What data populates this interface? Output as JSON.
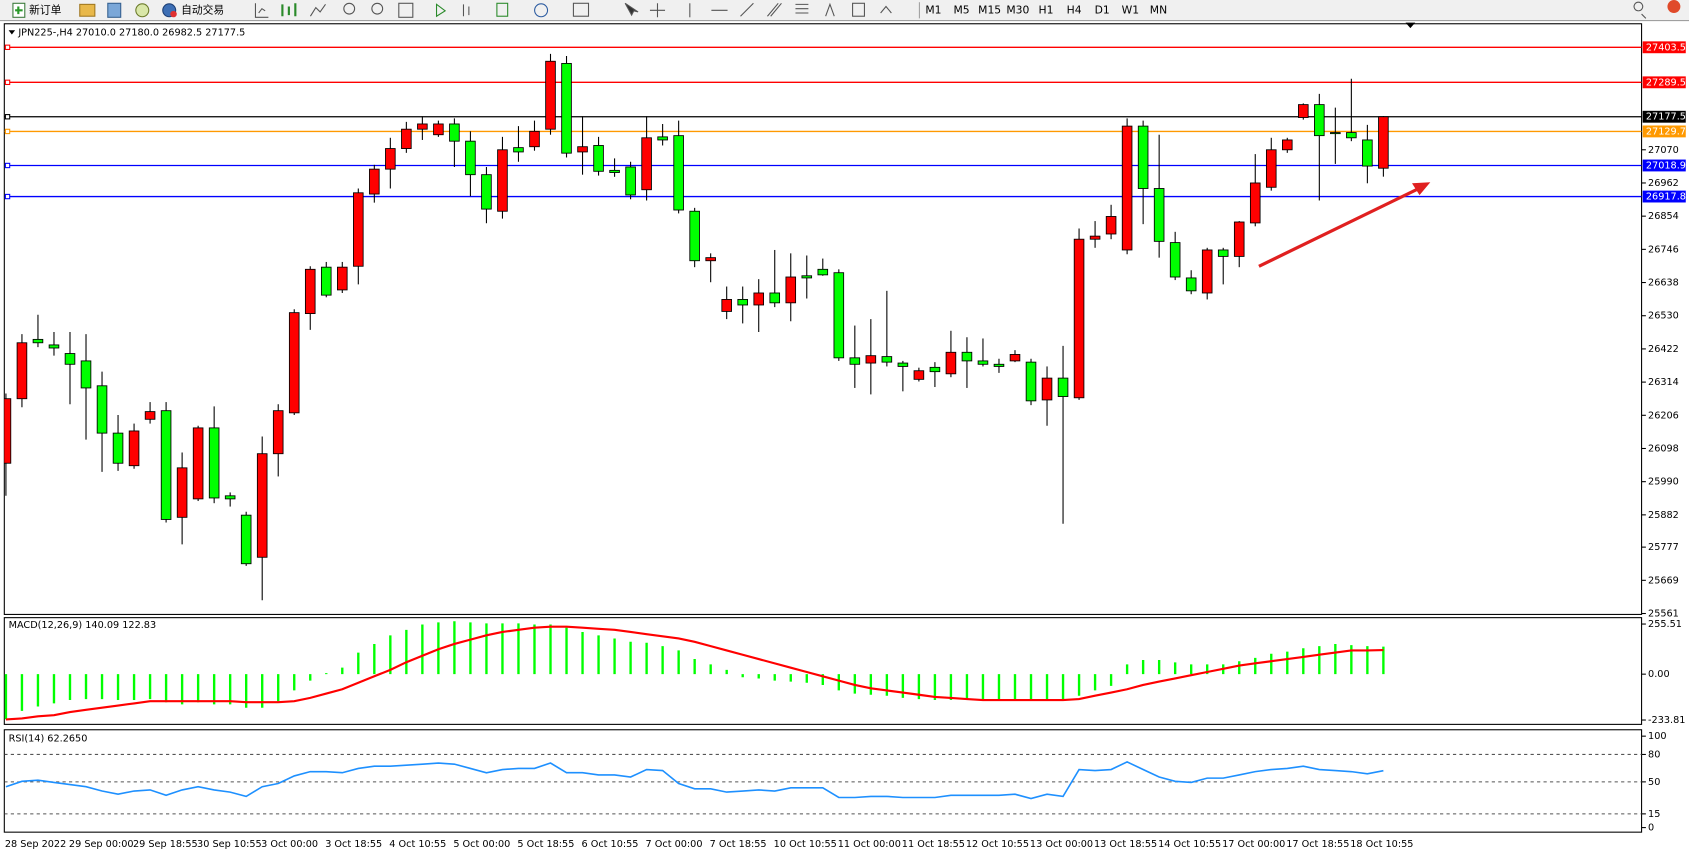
{
  "toolbar": {
    "new_order": "新订单",
    "auto_trading": "自动交易",
    "timeframes": [
      "M1",
      "M5",
      "M15",
      "M30",
      "H1",
      "H4",
      "D1",
      "W1",
      "MN"
    ]
  },
  "chart_data": [
    {
      "type": "candlestick",
      "title": "JPN225-,H4 27010.0 27180.0 26982.5 27177.5",
      "categories": [
        "28 Sep 2022",
        null,
        null,
        null,
        "29 Sep 00:00",
        null,
        null,
        null,
        "29 Sep 18:55",
        null,
        null,
        null,
        "30 Sep 10:55",
        null,
        null,
        null,
        "3 Oct 00:00",
        null,
        null,
        null,
        "3 Oct 18:55",
        null,
        null,
        null,
        "4 Oct 10:55",
        null,
        null,
        null,
        "5 Oct 00:00",
        null,
        null,
        null,
        "5 Oct 18:55",
        null,
        null,
        null,
        "6 Oct 10:55",
        null,
        null,
        null,
        "7 Oct 00:00",
        null,
        null,
        null,
        "7 Oct 18:55",
        null,
        null,
        null,
        "10 Oct 10:55",
        null,
        null,
        null,
        "11 Oct 00:00",
        null,
        null,
        null,
        "11 Oct 18:55",
        null,
        null,
        null,
        "12 Oct 10:55",
        null,
        null,
        null,
        "13 Oct 00:00",
        null,
        null,
        null,
        "13 Oct 18:55",
        null,
        null,
        null,
        "14 Oct 10:55",
        null,
        null,
        null,
        "17 Oct 00:00",
        null,
        null,
        null,
        "17 Oct 18:55",
        null,
        null,
        null,
        "18 Oct 10:55",
        null,
        null
      ],
      "open": [
        26050,
        26260,
        26453,
        26435,
        26407,
        26383,
        26302,
        26148,
        26042,
        26193,
        26221,
        25874,
        25934,
        26165,
        25944,
        25881,
        25744,
        26081,
        26214,
        26537,
        26688,
        26614,
        26691,
        26926,
        27007,
        27074,
        27137,
        27119,
        27154,
        27098,
        26989,
        26870,
        27077,
        27080,
        27137,
        27351,
        27063,
        27084,
        27003,
        27014,
        26940,
        27112,
        27116,
        26870,
        26709,
        26544,
        26583,
        26565,
        26604,
        26572,
        26660,
        26681,
        26670,
        26393,
        26376,
        26397,
        26376,
        26323,
        26362,
        26341,
        26411,
        26383,
        26372,
        26383,
        26379,
        26256,
        26327,
        26263,
        26779,
        26796,
        26744,
        27147,
        26944,
        26768,
        26653,
        26604,
        26744,
        26723,
        26832,
        26948,
        27070,
        27175,
        27217,
        27126,
        27126,
        27102,
        27010
      ],
      "high": [
        26277,
        26470,
        26533,
        26477,
        26477,
        26470,
        26348,
        26207,
        26179,
        26249,
        26249,
        26085,
        26172,
        26235,
        25955,
        25892,
        26137,
        26242,
        26551,
        26691,
        26705,
        26705,
        26944,
        27021,
        27109,
        27161,
        27179,
        27165,
        27172,
        27130,
        27014,
        27112,
        27147,
        27165,
        27382,
        27375,
        27179,
        27112,
        27042,
        27031,
        27179,
        27154,
        27165,
        26881,
        26733,
        26625,
        26625,
        26649,
        26744,
        26733,
        26726,
        26716,
        26681,
        26498,
        26519,
        26611,
        26383,
        26361,
        26379,
        26481,
        26460,
        26456,
        26390,
        26418,
        26390,
        26365,
        26432,
        26814,
        26838,
        26891,
        27172,
        27165,
        27119,
        26803,
        26678,
        26751,
        26751,
        26838,
        27056,
        27109,
        27109,
        27221,
        27252,
        27207,
        27301,
        27151,
        27180
      ],
      "low": [
        25944,
        26232,
        26428,
        26400,
        26242,
        26127,
        26022,
        26025,
        26032,
        26179,
        25857,
        25786,
        25927,
        25920,
        25909,
        25716,
        25604,
        26007,
        26207,
        26484,
        26590,
        26604,
        26632,
        26898,
        26944,
        27060,
        27102,
        27112,
        27014,
        26919,
        26831,
        26846,
        27031,
        27067,
        27119,
        27045,
        26989,
        26986,
        26982,
        26909,
        26905,
        27084,
        26863,
        26688,
        26639,
        26519,
        26505,
        26477,
        26558,
        26512,
        26586,
        26660,
        26383,
        26295,
        26274,
        26365,
        26284,
        26316,
        26298,
        26330,
        26295,
        26365,
        26344,
        26379,
        26239,
        26172,
        25853,
        26256,
        26751,
        26779,
        26730,
        26828,
        26719,
        26646,
        26600,
        26583,
        26632,
        26688,
        26821,
        26937,
        27060,
        27168,
        26905,
        27024,
        27098,
        26961,
        26982.5
      ],
      "close": [
        26260,
        26442,
        26442,
        26425,
        26372,
        26295,
        26148,
        26050,
        26155,
        26218,
        25867,
        26035,
        26165,
        25937,
        25934,
        25723,
        26081,
        26221,
        26540,
        26681,
        26597,
        26688,
        26930,
        27007,
        27074,
        27137,
        27154,
        27154,
        27098,
        26989,
        26877,
        27070,
        27063,
        27130,
        27358,
        27059,
        27080,
        27000,
        26996,
        26923,
        27109,
        27102,
        26874,
        26709,
        26719,
        26583,
        26565,
        26604,
        26572,
        26656,
        26653,
        26663,
        26393,
        26372,
        26400,
        26379,
        26365,
        26351,
        26348,
        26411,
        26383,
        26372,
        26365,
        26404,
        26253,
        26327,
        26267,
        26779,
        26789,
        26853,
        27147,
        26944,
        26772,
        26656,
        26611,
        26744,
        26723,
        26835,
        26962,
        27070,
        27102,
        27217,
        27116,
        27123,
        27109,
        27017,
        27177.5
      ],
      "up_color": "#ff0000",
      "down_color": "#00ff00",
      "ylim": [
        25558,
        27452
      ],
      "yticks": [
        27070,
        26962,
        26854,
        26746,
        26638,
        26530,
        26422,
        26314,
        26206,
        26098,
        25990,
        25882,
        25777,
        25669,
        25561
      ],
      "levels": [
        {
          "value": 27403.5,
          "color": "#ff0000"
        },
        {
          "value": 27289.5,
          "color": "#ff0000"
        },
        {
          "value": 27177.5,
          "color": "#000000"
        },
        {
          "value": 27129.7,
          "color": "#ff9900"
        },
        {
          "value": 27018.9,
          "color": "#0000ff"
        },
        {
          "value": 26917.8,
          "color": "#0000ff"
        }
      ]
    },
    {
      "type": "macd",
      "title": "MACD(12,26,9) 140.09 122.83",
      "series": [
        {
          "style": "histogram",
          "color": "#00ff00",
          "values": [
            -230,
            -187,
            -165,
            -149,
            -132,
            -127,
            -127,
            -132,
            -132,
            -127,
            -143,
            -154,
            -143,
            -154,
            -154,
            -171,
            -171,
            -138,
            -83,
            -33,
            5,
            33,
            110,
            154,
            198,
            226,
            253,
            264,
            270,
            264,
            259,
            259,
            259,
            253,
            253,
            237,
            215,
            198,
            182,
            165,
            160,
            143,
            121,
            77,
            50,
            22,
            -16,
            -22,
            -33,
            -38,
            -44,
            -55,
            -83,
            -99,
            -105,
            -110,
            -121,
            -127,
            -132,
            -132,
            -132,
            -132,
            -132,
            -132,
            -132,
            -132,
            -132,
            -110,
            -83,
            -60,
            50,
            72,
            72,
            60,
            50,
            50,
            50,
            66,
            83,
            104,
            115,
            132,
            143,
            154,
            148,
            143,
            140.09
          ]
        },
        {
          "style": "line",
          "color": "#ff0000",
          "values": [
            -231,
            -226,
            -215,
            -209,
            -193,
            -182,
            -171,
            -160,
            -149,
            -138,
            -138,
            -138,
            -138,
            -138,
            -138,
            -143,
            -143,
            -143,
            -138,
            -121,
            -99,
            -77,
            -44,
            -11,
            22,
            61,
            94,
            127,
            154,
            176,
            198,
            215,
            226,
            237,
            242,
            242,
            237,
            231,
            226,
            215,
            204,
            193,
            182,
            165,
            143,
            121,
            99,
            77,
            55,
            33,
            11,
            -11,
            -33,
            -55,
            -72,
            -83,
            -94,
            -105,
            -116,
            -121,
            -127,
            -132,
            -132,
            -132,
            -132,
            -132,
            -132,
            -127,
            -110,
            -94,
            -77,
            -55,
            -38,
            -22,
            -5,
            11,
            27,
            44,
            55,
            66,
            77,
            88,
            99,
            110,
            121,
            121,
            122.83
          ]
        }
      ],
      "ylim": [
        -256,
        288
      ],
      "yticks": [
        255.51,
        {
          "value": 0,
          "label": "0.00"
        },
        -233.81
      ]
    },
    {
      "type": "rsi",
      "title": "RSI(14) 62.2650",
      "series": [
        {
          "style": "line",
          "color": "#1e90ff",
          "values": [
            44.7,
            50.6,
            51.8,
            49.4,
            47.1,
            44.7,
            40.0,
            36.5,
            40.0,
            41.2,
            35.3,
            41.2,
            44.7,
            41.2,
            38.8,
            34.1,
            44.7,
            48.2,
            56.5,
            61.2,
            61.2,
            60.0,
            64.7,
            67.1,
            67.1,
            68.2,
            69.4,
            70.6,
            69.4,
            64.7,
            60.0,
            63.5,
            64.7,
            64.7,
            70.6,
            60.0,
            60.0,
            57.6,
            57.6,
            55.3,
            63.5,
            62.4,
            48.2,
            42.4,
            42.4,
            38.8,
            40.0,
            41.2,
            40.0,
            43.5,
            43.5,
            43.5,
            32.9,
            32.9,
            34.1,
            34.1,
            32.9,
            32.9,
            32.9,
            35.3,
            35.3,
            35.3,
            35.3,
            36.5,
            31.8,
            36.5,
            34.1,
            63.5,
            62.4,
            63.5,
            71.8,
            63.5,
            55.3,
            50.6,
            49.4,
            54.1,
            54.1,
            57.6,
            61.2,
            63.5,
            64.7,
            67.1,
            63.5,
            62.4,
            61.2,
            58.8,
            62.265
          ]
        }
      ],
      "ylim": [
        -5,
        107
      ],
      "yticks": [
        100,
        80,
        50,
        15,
        0
      ],
      "levels": [
        80,
        50,
        15
      ]
    }
  ]
}
